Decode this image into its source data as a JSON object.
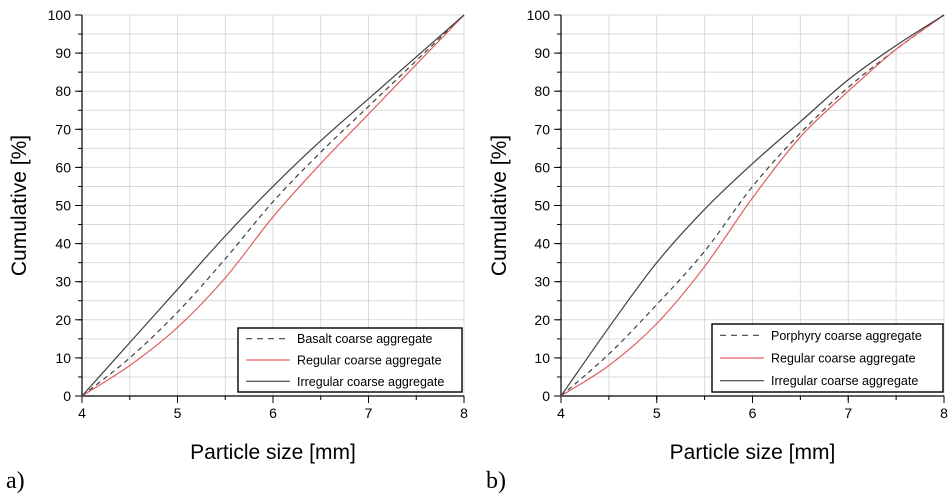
{
  "chart_data": [
    {
      "type": "line",
      "panel_label": "a)",
      "xlabel": "Particle size [mm]",
      "ylabel": "Cumulative [%]",
      "xlim": [
        4,
        8
      ],
      "ylim": [
        0,
        100
      ],
      "xticks": [
        4,
        5,
        6,
        7,
        8
      ],
      "yticks": [
        0,
        10,
        20,
        30,
        40,
        50,
        60,
        70,
        80,
        90,
        100
      ],
      "grid": true,
      "legend_position": "bottom-right",
      "x": [
        4,
        4.5,
        5,
        5.5,
        6,
        6.5,
        7,
        7.5,
        8
      ],
      "series": [
        {
          "name": "Basalt coarse aggregate",
          "color": "#404040",
          "dash": "dashed",
          "values": [
            0,
            10,
            22,
            36,
            51,
            64,
            76,
            88,
            100
          ]
        },
        {
          "name": "Regular coarse aggregate",
          "color": "#e06060",
          "dash": "solid",
          "values": [
            0,
            8,
            18,
            31,
            47,
            61,
            74,
            87,
            100
          ]
        },
        {
          "name": "Irregular coarse aggregate",
          "color": "#404040",
          "dash": "solid",
          "values": [
            0,
            14,
            28,
            42,
            55,
            67,
            78,
            89,
            100
          ]
        }
      ]
    },
    {
      "type": "line",
      "panel_label": "b)",
      "xlabel": "Particle size [mm]",
      "ylabel": "Cumulative [%]",
      "xlim": [
        4,
        8
      ],
      "ylim": [
        0,
        100
      ],
      "xticks": [
        4,
        5,
        6,
        7,
        8
      ],
      "yticks": [
        0,
        10,
        20,
        30,
        40,
        50,
        60,
        70,
        80,
        90,
        100
      ],
      "grid": true,
      "legend_position": "bottom-right",
      "x": [
        4,
        4.5,
        5,
        5.5,
        6,
        6.5,
        7,
        7.5,
        8
      ],
      "series": [
        {
          "name": "Porphyry coarse aggregate",
          "color": "#404040",
          "dash": "dashed",
          "values": [
            0,
            11,
            24,
            38,
            55,
            69,
            81,
            91,
            100
          ]
        },
        {
          "name": "Regular coarse aggregate",
          "color": "#e06060",
          "dash": "solid",
          "values": [
            0,
            8,
            19,
            34,
            52,
            68,
            80,
            91,
            100
          ]
        },
        {
          "name": "Irregular coarse aggregate",
          "color": "#404040",
          "dash": "solid",
          "values": [
            0,
            18,
            35,
            49,
            61,
            72,
            83,
            92,
            100
          ]
        }
      ]
    }
  ]
}
